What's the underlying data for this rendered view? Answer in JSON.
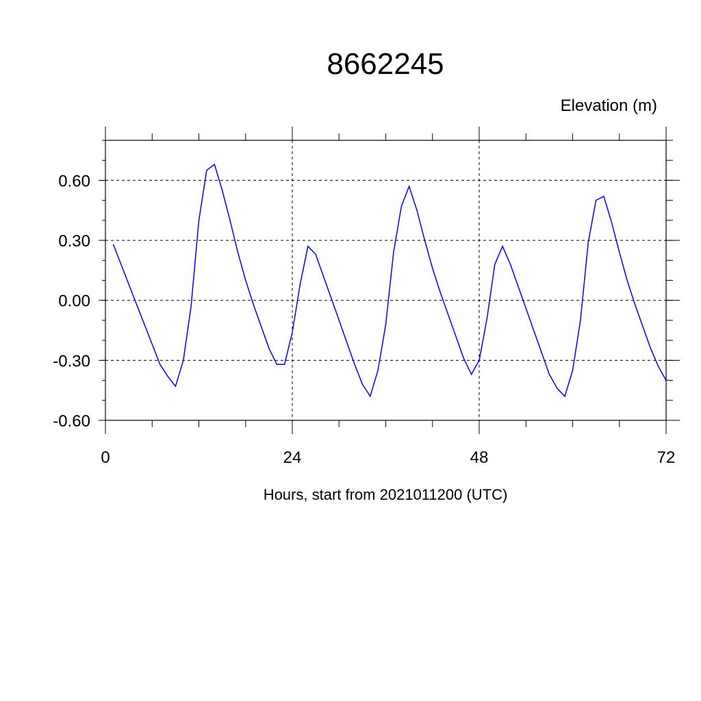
{
  "chart_data": {
    "type": "line",
    "title": "8662245",
    "corner_label": "Elevation (m)",
    "xlabel": "Hours, start from 2021011200 (UTC)",
    "ylabel": "",
    "xlim": [
      0,
      72
    ],
    "ylim": [
      -0.6,
      0.8
    ],
    "x_ticks": [
      0,
      24,
      48,
      72
    ],
    "x_tick_labels": [
      "0",
      "24",
      "48",
      "72"
    ],
    "y_ticks": [
      -0.6,
      -0.3,
      0.0,
      0.3,
      0.6
    ],
    "y_tick_labels": [
      "-0.60",
      "-0.30",
      "0.00",
      "0.30",
      "0.60"
    ],
    "grid": true,
    "line_color": "#0000ff",
    "series": [
      {
        "x": [
          1,
          2,
          3,
          4,
          5,
          6,
          7,
          8,
          9,
          10,
          11,
          12,
          13,
          14,
          15,
          16,
          17,
          18,
          19,
          20,
          21,
          22,
          23,
          24,
          25,
          26,
          27,
          28,
          29,
          30,
          31,
          32,
          33,
          34,
          35,
          36,
          37,
          38,
          39,
          40,
          41,
          42,
          43,
          44,
          45,
          46,
          47,
          48,
          49,
          50,
          51,
          52,
          53,
          54,
          55,
          56,
          57,
          58,
          59,
          60,
          61,
          62,
          63,
          64,
          65,
          66,
          67,
          68,
          69,
          70,
          71,
          72
        ],
        "values": [
          0.28,
          0.18,
          0.08,
          -0.02,
          -0.12,
          -0.22,
          -0.32,
          -0.38,
          -0.43,
          -0.3,
          -0.03,
          0.4,
          0.65,
          0.68,
          0.55,
          0.4,
          0.24,
          0.1,
          -0.02,
          -0.13,
          -0.24,
          -0.32,
          -0.32,
          -0.16,
          0.08,
          0.27,
          0.23,
          0.12,
          0.01,
          -0.1,
          -0.21,
          -0.32,
          -0.42,
          -0.48,
          -0.35,
          -0.12,
          0.24,
          0.47,
          0.57,
          0.45,
          0.3,
          0.16,
          0.04,
          -0.07,
          -0.18,
          -0.29,
          -0.37,
          -0.3,
          -0.09,
          0.18,
          0.27,
          0.18,
          0.07,
          -0.04,
          -0.15,
          -0.26,
          -0.37,
          -0.44,
          -0.48,
          -0.35,
          -0.1,
          0.29,
          0.5,
          0.52,
          0.39,
          0.24,
          0.1,
          -0.02,
          -0.13,
          -0.24,
          -0.33,
          -0.4
        ]
      }
    ]
  }
}
